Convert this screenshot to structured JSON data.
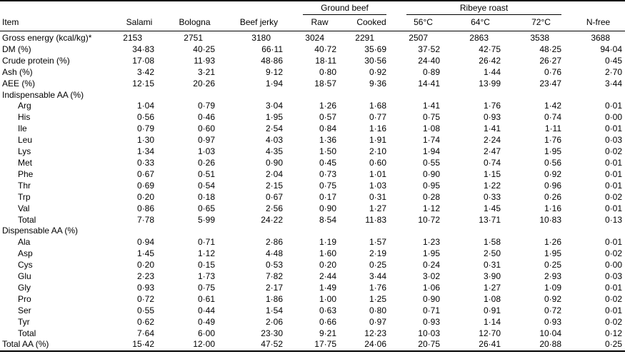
{
  "table": {
    "group_headers": {
      "ground_beef": "Ground beef",
      "ribeye_roast": "Ribeye roast"
    },
    "columns": [
      "Item",
      "Salami",
      "Bologna",
      "Beef jerky",
      "Raw",
      "Cooked",
      "56°C",
      "64°C",
      "72°C",
      "N-free"
    ],
    "rows": [
      {
        "label": "Gross energy (kcal/kg)*",
        "indent": 0,
        "int": true,
        "values": [
          "2153",
          "2751",
          "3180",
          "3024",
          "2291",
          "2507",
          "2863",
          "3538",
          "3688"
        ]
      },
      {
        "label": "DM (%)",
        "indent": 0,
        "values": [
          "34·83",
          "40·25",
          "66·11",
          "40·72",
          "35·69",
          "37·52",
          "42·75",
          "48·25",
          "94·04"
        ]
      },
      {
        "label": "Crude protein (%)",
        "indent": 0,
        "values": [
          "17·08",
          "11·93",
          "48·86",
          "18·11",
          "30·56",
          "24·40",
          "26·42",
          "26·27",
          "0·45"
        ]
      },
      {
        "label": "Ash (%)",
        "indent": 0,
        "values": [
          "3·42",
          "3·21",
          "9·12",
          "0·80",
          "0·92",
          "0·89",
          "1·44",
          "0·76",
          "2·70"
        ]
      },
      {
        "label": "AEE (%)",
        "indent": 0,
        "values": [
          "12·15",
          "20·26",
          "1·94",
          "18·57",
          "9·36",
          "14·41",
          "13·99",
          "23·47",
          "3·44"
        ]
      },
      {
        "label": "Indispensable AA (%)",
        "indent": 0,
        "section": true,
        "values": []
      },
      {
        "label": "Arg",
        "indent": 1,
        "values": [
          "1·04",
          "0·79",
          "3·04",
          "1·26",
          "1·68",
          "1·41",
          "1·76",
          "1·42",
          "0·01"
        ]
      },
      {
        "label": "His",
        "indent": 1,
        "values": [
          "0·56",
          "0·46",
          "1·95",
          "0·57",
          "0·77",
          "0·75",
          "0·93",
          "0·74",
          "0·00"
        ]
      },
      {
        "label": "Ile",
        "indent": 1,
        "values": [
          "0·79",
          "0·60",
          "2·54",
          "0·84",
          "1·16",
          "1·08",
          "1·41",
          "1·11",
          "0·01"
        ]
      },
      {
        "label": "Leu",
        "indent": 1,
        "values": [
          "1·30",
          "0·97",
          "4·03",
          "1·36",
          "1·91",
          "1·74",
          "2·24",
          "1·76",
          "0·03"
        ]
      },
      {
        "label": "Lys",
        "indent": 1,
        "values": [
          "1·34",
          "1·03",
          "4·35",
          "1·50",
          "2·10",
          "1·94",
          "2·47",
          "1·95",
          "0·02"
        ]
      },
      {
        "label": "Met",
        "indent": 1,
        "values": [
          "0·33",
          "0·26",
          "0·90",
          "0·45",
          "0·60",
          "0·55",
          "0·74",
          "0·56",
          "0·01"
        ]
      },
      {
        "label": "Phe",
        "indent": 1,
        "values": [
          "0·67",
          "0·51",
          "2·04",
          "0·73",
          "1·01",
          "0·90",
          "1·15",
          "0·92",
          "0·01"
        ]
      },
      {
        "label": "Thr",
        "indent": 1,
        "values": [
          "0·69",
          "0·54",
          "2·15",
          "0·75",
          "1·03",
          "0·95",
          "1·22",
          "0·96",
          "0·01"
        ]
      },
      {
        "label": "Trp",
        "indent": 1,
        "values": [
          "0·20",
          "0·18",
          "0·67",
          "0·17",
          "0·31",
          "0·28",
          "0·33",
          "0·26",
          "0·02"
        ]
      },
      {
        "label": "Val",
        "indent": 1,
        "values": [
          "0·86",
          "0·65",
          "2·56",
          "0·90",
          "1·27",
          "1·12",
          "1·45",
          "1·16",
          "0·01"
        ]
      },
      {
        "label": "Total",
        "indent": 1,
        "values": [
          "7·78",
          "5·99",
          "24·22",
          "8·54",
          "11·83",
          "10·72",
          "13·71",
          "10·83",
          "0·13"
        ]
      },
      {
        "label": "Dispensable AA (%)",
        "indent": 0,
        "section": true,
        "values": []
      },
      {
        "label": "Ala",
        "indent": 1,
        "values": [
          "0·94",
          "0·71",
          "2·86",
          "1·19",
          "1·57",
          "1·23",
          "1·58",
          "1·26",
          "0·01"
        ]
      },
      {
        "label": "Asp",
        "indent": 1,
        "values": [
          "1·45",
          "1·12",
          "4·48",
          "1·60",
          "2·19",
          "1·95",
          "2·50",
          "1·95",
          "0·02"
        ]
      },
      {
        "label": "Cys",
        "indent": 1,
        "values": [
          "0·20",
          "0·15",
          "0·53",
          "0·20",
          "0·25",
          "0·24",
          "0·31",
          "0·25",
          "0·00"
        ]
      },
      {
        "label": "Glu",
        "indent": 1,
        "values": [
          "2·23",
          "1·73",
          "7·82",
          "2·44",
          "3·44",
          "3·02",
          "3·90",
          "2·93",
          "0·03"
        ]
      },
      {
        "label": "Gly",
        "indent": 1,
        "values": [
          "0·93",
          "0·75",
          "2·17",
          "1·49",
          "1·76",
          "1·06",
          "1·27",
          "1·09",
          "0·01"
        ]
      },
      {
        "label": "Pro",
        "indent": 1,
        "values": [
          "0·72",
          "0·61",
          "1·86",
          "1·00",
          "1·25",
          "0·90",
          "1·08",
          "0·92",
          "0·02"
        ]
      },
      {
        "label": "Ser",
        "indent": 1,
        "values": [
          "0·55",
          "0·44",
          "1·54",
          "0·63",
          "0·80",
          "0·71",
          "0·91",
          "0·72",
          "0·01"
        ]
      },
      {
        "label": "Tyr",
        "indent": 1,
        "values": [
          "0·62",
          "0·49",
          "2·06",
          "0·66",
          "0·97",
          "0·93",
          "1·14",
          "0·93",
          "0·02"
        ]
      },
      {
        "label": "Total",
        "indent": 1,
        "values": [
          "7·64",
          "6·00",
          "23·30",
          "9·21",
          "12·23",
          "10·03",
          "12·70",
          "10·04",
          "0·12"
        ]
      },
      {
        "label": "Total AA (%)",
        "indent": 0,
        "values": [
          "15·42",
          "12·00",
          "47·52",
          "17·75",
          "24·06",
          "20·75",
          "26·41",
          "20·88",
          "0·25"
        ]
      }
    ]
  }
}
